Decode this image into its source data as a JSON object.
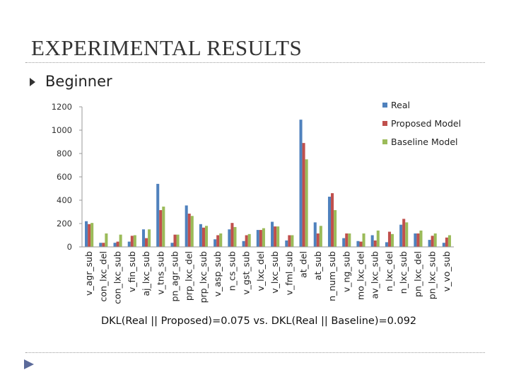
{
  "slide": {
    "title": "EXPERIMENTAL RESULTS",
    "bullet": "Beginner",
    "caption": "DKL(Real || Proposed)=0.075 vs. DKL(Real || Baseline)=0.092"
  },
  "chart_data": {
    "type": "bar",
    "title": "",
    "xlabel": "",
    "ylabel": "",
    "ylim": [
      0,
      1200
    ],
    "yticks": [
      "0",
      "200",
      "400",
      "600",
      "800",
      "1000",
      "1200"
    ],
    "grid": false,
    "legend_position": "top-right",
    "categories": [
      "v_agr_sub",
      "con_lxc_del",
      "con_lxc_sub",
      "v_fin_sub",
      "aj_lxc_sub",
      "v_tns_sub",
      "pn_agr_sub",
      "prp_lxc_del",
      "prp_lxc_sub",
      "v_asp_sub",
      "n_cs_sub",
      "v_gst_sub",
      "v_lxc_del",
      "v_lxc_sub",
      "v_fml_sub",
      "at_del",
      "at_sub",
      "n_num_sub",
      "v_ng_sub",
      "mo_lxc_del",
      "av_lxc_sub",
      "n_lxc_del",
      "n_lxc_sub",
      "pn_lxc_del",
      "pn_lxc_sub",
      "v_vo_sub"
    ],
    "series": [
      {
        "name": "Real",
        "color": "#4f81bd",
        "values": [
          220,
          35,
          35,
          45,
          150,
          540,
          35,
          355,
          195,
          65,
          150,
          50,
          145,
          215,
          55,
          1090,
          210,
          430,
          75,
          50,
          100,
          40,
          190,
          115,
          60,
          35
        ]
      },
      {
        "name": "Proposed Model",
        "color": "#c0504d",
        "values": [
          195,
          35,
          45,
          95,
          75,
          315,
          105,
          285,
          165,
          100,
          205,
          100,
          145,
          175,
          100,
          890,
          115,
          460,
          115,
          45,
          55,
          130,
          240,
          115,
          95,
          80
        ]
      },
      {
        "name": "Baseline Model",
        "color": "#9bbb59",
        "values": [
          205,
          115,
          105,
          100,
          150,
          345,
          105,
          265,
          180,
          115,
          170,
          110,
          160,
          175,
          100,
          750,
          180,
          315,
          115,
          115,
          140,
          110,
          210,
          140,
          115,
          100
        ]
      }
    ]
  }
}
